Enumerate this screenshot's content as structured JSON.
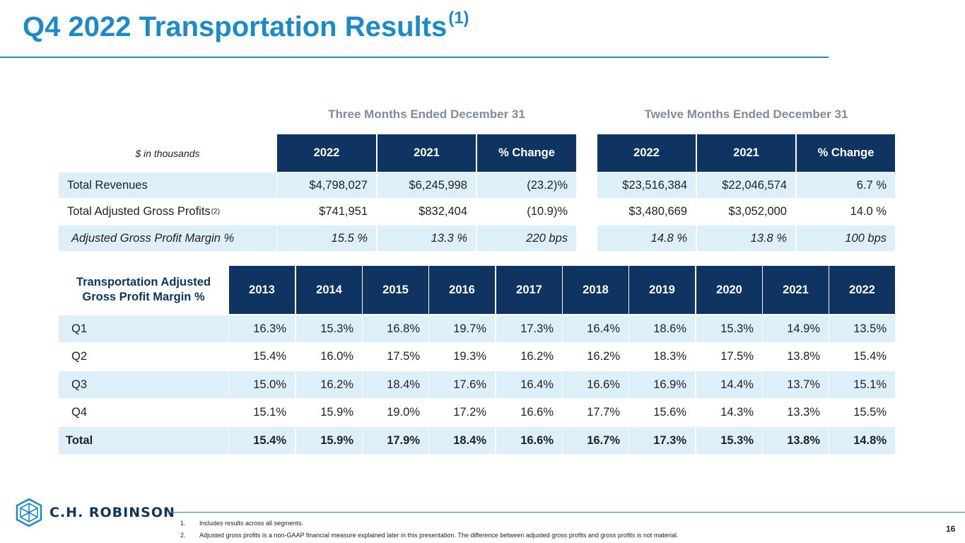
{
  "slide": {
    "title": "Q4 2022 Transportation Results",
    "title_footnote_ref": "(1)",
    "page_number": "16"
  },
  "results_table": {
    "three_month_header": "Three Months Ended December 31",
    "twelve_month_header": "Twelve Months Ended December 31",
    "unit_label": "$ in thousands",
    "three_month_columns": [
      "2022",
      "2021",
      "% Change"
    ],
    "twelve_month_columns": [
      "2022",
      "2021",
      "% Change"
    ],
    "rows": [
      {
        "label": "Total Revenues",
        "sup": "",
        "three_month": [
          "$4,798,027",
          "$6,245,998",
          "(23.2)%"
        ],
        "twelve_month": [
          "$23,516,384",
          "$22,046,574",
          "6.7 %"
        ]
      },
      {
        "label": "Total Adjusted Gross Profits",
        "sup": "(2)",
        "three_month": [
          "$741,951",
          "$832,404",
          "(10.9)%"
        ],
        "twelve_month": [
          "$3,480,669",
          "$3,052,000",
          "14.0 %"
        ]
      },
      {
        "label": "Adjusted Gross Profit Margin %",
        "sup": "",
        "three_month": [
          "15.5 %",
          "13.3 %",
          "220 bps"
        ],
        "twelve_month": [
          "14.8 %",
          "13.8 %",
          "100 bps"
        ]
      }
    ]
  },
  "margin_table": {
    "row_header": "Transportation Adjusted Gross Profit Margin %",
    "years": [
      "2013",
      "2014",
      "2015",
      "2016",
      "2017",
      "2018",
      "2019",
      "2020",
      "2021",
      "2022"
    ],
    "rows": [
      {
        "label": "Q1",
        "values": [
          "16.3%",
          "15.3%",
          "16.8%",
          "19.7%",
          "17.3%",
          "16.4%",
          "18.6%",
          "15.3%",
          "14.9%",
          "13.5%"
        ]
      },
      {
        "label": "Q2",
        "values": [
          "15.4%",
          "16.0%",
          "17.5%",
          "19.3%",
          "16.2%",
          "16.2%",
          "18.3%",
          "17.5%",
          "13.8%",
          "15.4%"
        ]
      },
      {
        "label": "Q3",
        "values": [
          "15.0%",
          "16.2%",
          "18.4%",
          "17.6%",
          "16.4%",
          "16.6%",
          "16.9%",
          "14.4%",
          "13.7%",
          "15.1%"
        ]
      },
      {
        "label": "Q4",
        "values": [
          "15.1%",
          "15.9%",
          "19.0%",
          "17.2%",
          "16.6%",
          "17.7%",
          "15.6%",
          "14.3%",
          "13.3%",
          "15.5%"
        ]
      },
      {
        "label": "Total",
        "values": [
          "15.4%",
          "15.9%",
          "17.9%",
          "18.4%",
          "16.6%",
          "16.7%",
          "17.3%",
          "15.3%",
          "13.8%",
          "14.8%"
        ]
      }
    ]
  },
  "footer": {
    "logo_text": "C.H. ROBINSON",
    "logo_icon": "cube-hexagon-icon",
    "footnotes": [
      {
        "num": "1.",
        "text": "Includes results across all segments."
      },
      {
        "num": "2.",
        "text": "Adjusted gross profits is a non-GAAP financial measure explained later in this presentation. The difference between adjusted gross profits and gross profits is not material."
      }
    ]
  },
  "colors": {
    "title_blue": "#1b8ac9",
    "header_navy": "#0f3461",
    "band_light_blue": "#ddf0f9",
    "period_header_gray": "#7f8c99"
  }
}
